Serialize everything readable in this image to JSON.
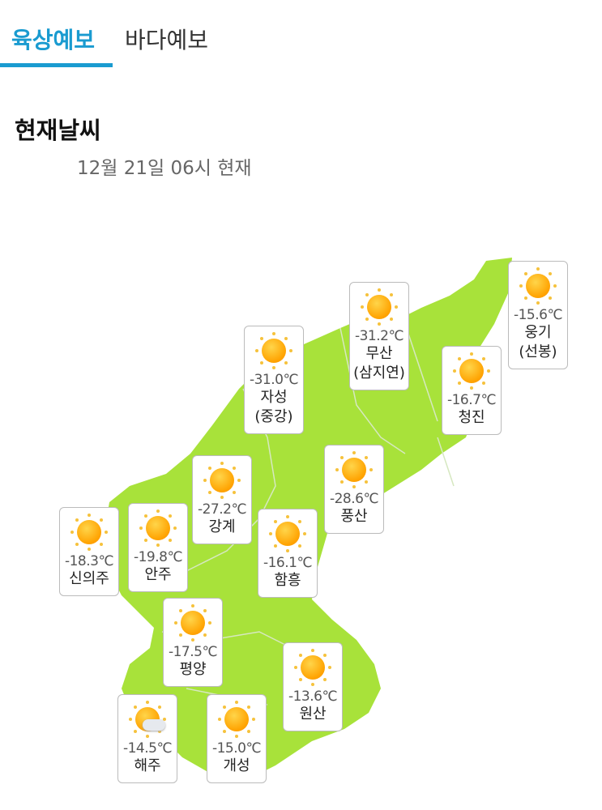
{
  "tabs": [
    {
      "label": "육상예보",
      "active": true
    },
    {
      "label": "바다예보",
      "active": false
    }
  ],
  "section_title": "현재날씨",
  "timestamp": "12월 21일 06시 현재",
  "colors": {
    "accent": "#1a9bd0",
    "land": "#a8e23a",
    "border": "#dddddd"
  },
  "stations": [
    {
      "name": "웅기",
      "sub": "(선봉)",
      "temp": "-15.6℃",
      "icon": "sun-icon"
    },
    {
      "name": "무산",
      "sub": "(삼지연)",
      "temp": "-31.2℃",
      "icon": "sun-icon"
    },
    {
      "name": "자성",
      "sub": "(중강)",
      "temp": "-31.0℃",
      "icon": "sun-icon"
    },
    {
      "name": "청진",
      "temp": "-16.7℃",
      "icon": "sun-icon"
    },
    {
      "name": "풍산",
      "temp": "-28.6℃",
      "icon": "sun-icon"
    },
    {
      "name": "강계",
      "temp": "-27.2℃",
      "icon": "sun-icon"
    },
    {
      "name": "신의주",
      "temp": "-18.3℃",
      "icon": "sun-icon"
    },
    {
      "name": "안주",
      "temp": "-19.8℃",
      "icon": "sun-icon"
    },
    {
      "name": "함흥",
      "temp": "-16.1℃",
      "icon": "sun-icon"
    },
    {
      "name": "평양",
      "temp": "-17.5℃",
      "icon": "sun-icon"
    },
    {
      "name": "원산",
      "temp": "-13.6℃",
      "icon": "sun-icon"
    },
    {
      "name": "해주",
      "temp": "-14.5℃",
      "icon": "partly-cloudy-icon"
    },
    {
      "name": "개성",
      "temp": "-15.0℃",
      "icon": "sun-icon"
    }
  ]
}
